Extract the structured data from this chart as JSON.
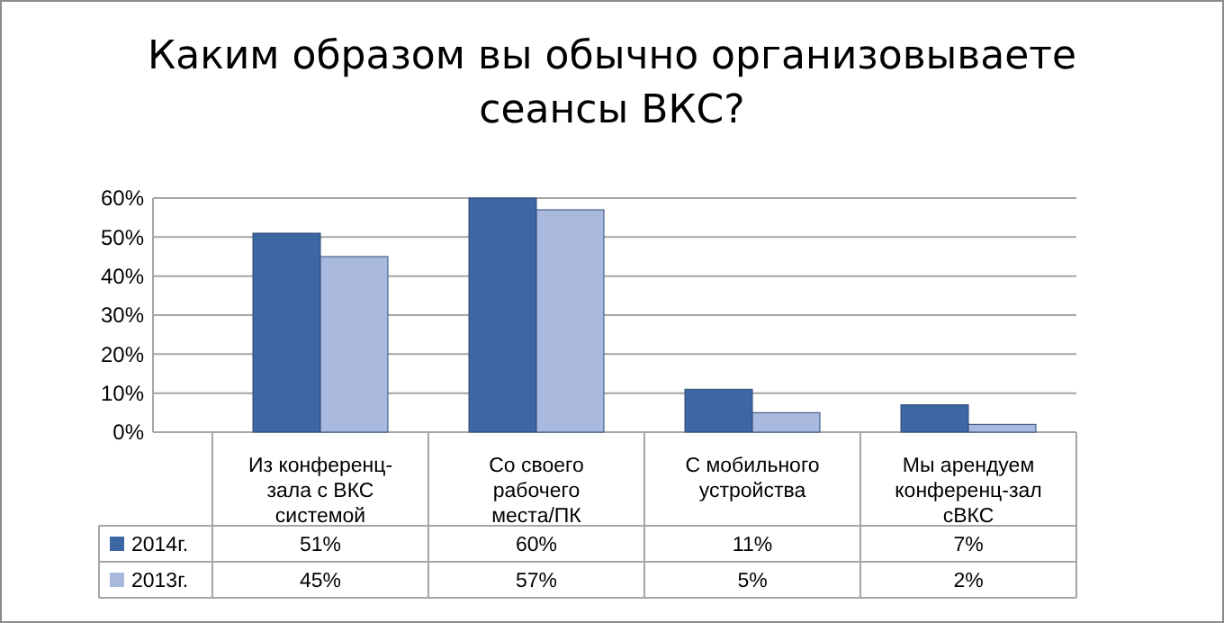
{
  "chart_data": {
    "type": "bar",
    "title": "Каким образом вы обычно организовываете сеансы ВКС?",
    "categories": [
      "Из конференц-зала с ВКС системой",
      "Со своего рабочего места/ПК",
      "С мобильного устройства",
      "Мы арендуем конференц-зал сВКС"
    ],
    "series": [
      {
        "name": "2014г.",
        "color": "#3d67a3",
        "values": [
          51,
          60,
          11,
          7
        ],
        "value_labels": [
          "51%",
          "60%",
          "11%",
          "7%"
        ]
      },
      {
        "name": "2013г.",
        "color": "#a9b9de",
        "values": [
          45,
          57,
          5,
          2
        ],
        "value_labels": [
          "45%",
          "57%",
          "5%",
          "2%"
        ]
      }
    ],
    "ylim": [
      0,
      60
    ],
    "yticks": [
      {
        "value": 0,
        "label": "0%"
      },
      {
        "value": 10,
        "label": "10%"
      },
      {
        "value": 20,
        "label": "20%"
      },
      {
        "value": 30,
        "label": "30%"
      },
      {
        "value": 40,
        "label": "40%"
      },
      {
        "value": 50,
        "label": "50%"
      },
      {
        "value": 60,
        "label": "60%"
      }
    ],
    "grid": "y",
    "legend": "bottom"
  }
}
